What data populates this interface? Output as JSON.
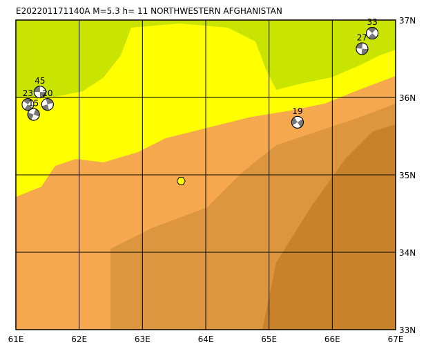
{
  "title": "E202201171140A  M=5.3  h= 11  NORTHWESTERN AFGHANISTAN",
  "map": {
    "xlim": [
      61,
      67
    ],
    "ylim": [
      33,
      37
    ],
    "xticks": [
      {
        "value": 61,
        "label": "61E"
      },
      {
        "value": 62,
        "label": "62E"
      },
      {
        "value": 63,
        "label": "63E"
      },
      {
        "value": 64,
        "label": "64E"
      },
      {
        "value": 65,
        "label": "65E"
      },
      {
        "value": 66,
        "label": "66E"
      },
      {
        "value": 67,
        "label": "67E"
      }
    ],
    "yticks": [
      {
        "value": 33,
        "label": "33N"
      },
      {
        "value": 34,
        "label": "34N"
      },
      {
        "value": 35,
        "label": "35N"
      },
      {
        "value": 36,
        "label": "36N"
      },
      {
        "value": 37,
        "label": "37N"
      }
    ],
    "epicenter": {
      "lon": 63.61,
      "lat": 34.92
    },
    "events": [
      {
        "label": "45",
        "lon": 61.38,
        "lat": 36.07
      },
      {
        "label": "23",
        "lon": 61.19,
        "lat": 35.91
      },
      {
        "label": "20",
        "lon": 61.5,
        "lat": 35.91
      },
      {
        "label": "15",
        "lon": 61.28,
        "lat": 35.78
      },
      {
        "label": "19",
        "lon": 65.45,
        "lat": 35.68
      },
      {
        "label": "27",
        "lon": 66.47,
        "lat": 36.63
      },
      {
        "label": "33",
        "lon": 66.63,
        "lat": 36.83
      }
    ]
  }
}
